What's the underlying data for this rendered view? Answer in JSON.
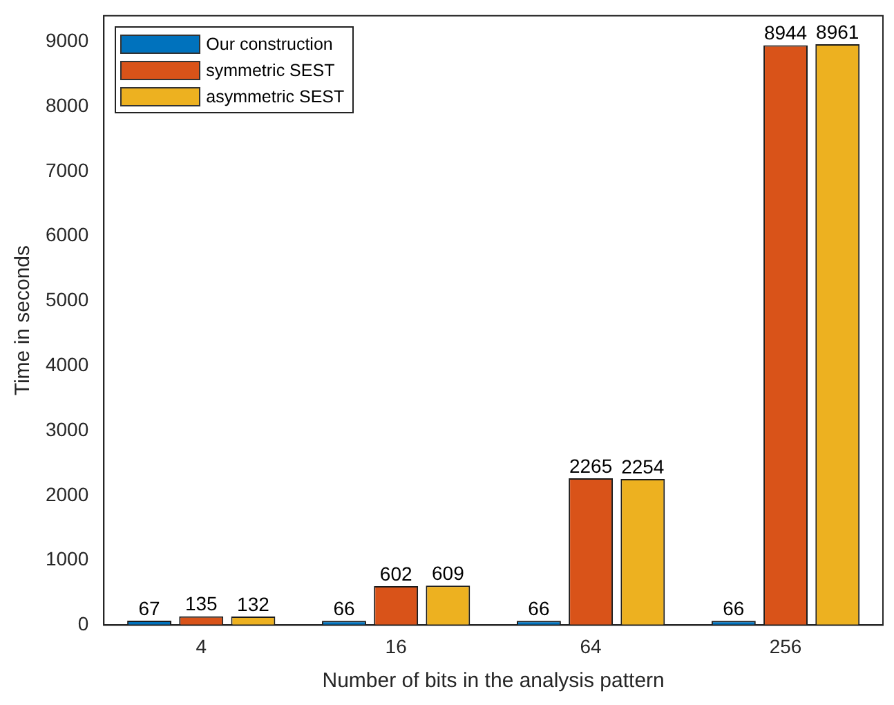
{
  "chart_data": {
    "type": "bar",
    "xlabel": "Number of bits in the analysis pattern",
    "ylabel": "Time in seconds",
    "categories": [
      "4",
      "16",
      "64",
      "256"
    ],
    "series": [
      {
        "name": "Our construction",
        "color": "#0072bd",
        "values": [
          67,
          66,
          66,
          66
        ]
      },
      {
        "name": "symmetric SEST",
        "color": "#d95319",
        "values": [
          135,
          602,
          2265,
          8944
        ]
      },
      {
        "name": "asymmetric SEST",
        "color": "#edb120",
        "values": [
          132,
          609,
          2254,
          8961
        ]
      }
    ],
    "ylim": [
      0,
      9400
    ],
    "yticks": [
      0,
      1000,
      2000,
      3000,
      4000,
      5000,
      6000,
      7000,
      8000,
      9000
    ],
    "grid": false,
    "legend": "top left",
    "data_labels": true
  }
}
